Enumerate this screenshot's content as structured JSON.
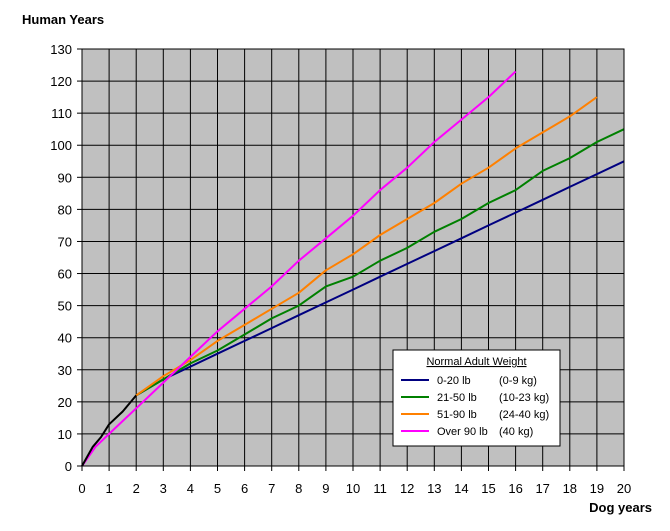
{
  "chart_data": {
    "type": "line",
    "ylabel": "Human Years",
    "xlabel": "Dog years",
    "xlim": [
      0,
      20
    ],
    "ylim": [
      0,
      130
    ],
    "x_ticks": [
      0,
      1,
      2,
      3,
      4,
      5,
      6,
      7,
      8,
      9,
      10,
      11,
      12,
      13,
      14,
      15,
      16,
      17,
      18,
      19,
      20
    ],
    "y_ticks": [
      0,
      10,
      20,
      30,
      40,
      50,
      60,
      70,
      80,
      90,
      100,
      110,
      120,
      130
    ],
    "grid": true,
    "plot_background": "#c0c0c0",
    "legend": {
      "title": "Normal Adult Weight",
      "placement": "inside-lower-right",
      "entries": [
        {
          "label": "0-20 lb",
          "sub": "(0-9 kg)",
          "color": "#000080"
        },
        {
          "label": "21-50 lb",
          "sub": "(10-23 kg)",
          "color": "#008000"
        },
        {
          "label": "51-90 lb",
          "sub": "(24-40 kg)",
          "color": "#ff8000"
        },
        {
          "label": "Over 90 lb",
          "sub": "(40 kg)",
          "color": "#ff00ff"
        }
      ]
    },
    "series": [
      {
        "name": "0-20 lb",
        "color": "#000080",
        "x": [
          2,
          3,
          4,
          5,
          6,
          7,
          8,
          9,
          10,
          11,
          12,
          13,
          14,
          15,
          16,
          17,
          18,
          19,
          20
        ],
        "y": [
          22,
          27,
          31,
          35,
          39,
          43,
          47,
          51,
          55,
          59,
          63,
          67,
          71,
          75,
          79,
          83,
          87,
          91,
          95
        ]
      },
      {
        "name": "21-50 lb",
        "color": "#008000",
        "x": [
          2,
          3,
          4,
          5,
          6,
          7,
          8,
          9,
          10,
          11,
          12,
          13,
          14,
          15,
          16,
          17,
          18,
          19,
          20
        ],
        "y": [
          22,
          27,
          32,
          36,
          41,
          46,
          50,
          56,
          59,
          64,
          68,
          73,
          77,
          82,
          86,
          92,
          96,
          101,
          105
        ]
      },
      {
        "name": "51-90 lb",
        "color": "#ff8000",
        "x": [
          2,
          3,
          4,
          5,
          6,
          7,
          8,
          9,
          10,
          11,
          12,
          13,
          14,
          15,
          16,
          17,
          18,
          19
        ],
        "y": [
          22,
          28,
          33,
          39,
          44,
          49,
          54,
          61,
          66,
          72,
          77,
          82,
          88,
          93,
          99,
          104,
          109,
          115
        ]
      },
      {
        "name": "Over 90 lb",
        "color": "#ff00ff",
        "x": [
          0,
          0.5,
          1,
          2,
          3,
          4,
          5,
          6,
          7,
          8,
          9,
          10,
          11,
          12,
          13,
          14,
          15,
          16
        ],
        "y": [
          0,
          6,
          10,
          18,
          26,
          34,
          42,
          49,
          56,
          64,
          71,
          78,
          86,
          93,
          101,
          108,
          115,
          123
        ]
      },
      {
        "name": "",
        "color": "#000000",
        "x": [
          0,
          0.2,
          0.4,
          0.7,
          1,
          1.5,
          2
        ],
        "y": [
          0,
          3,
          6,
          9,
          13,
          17,
          22
        ]
      }
    ]
  }
}
